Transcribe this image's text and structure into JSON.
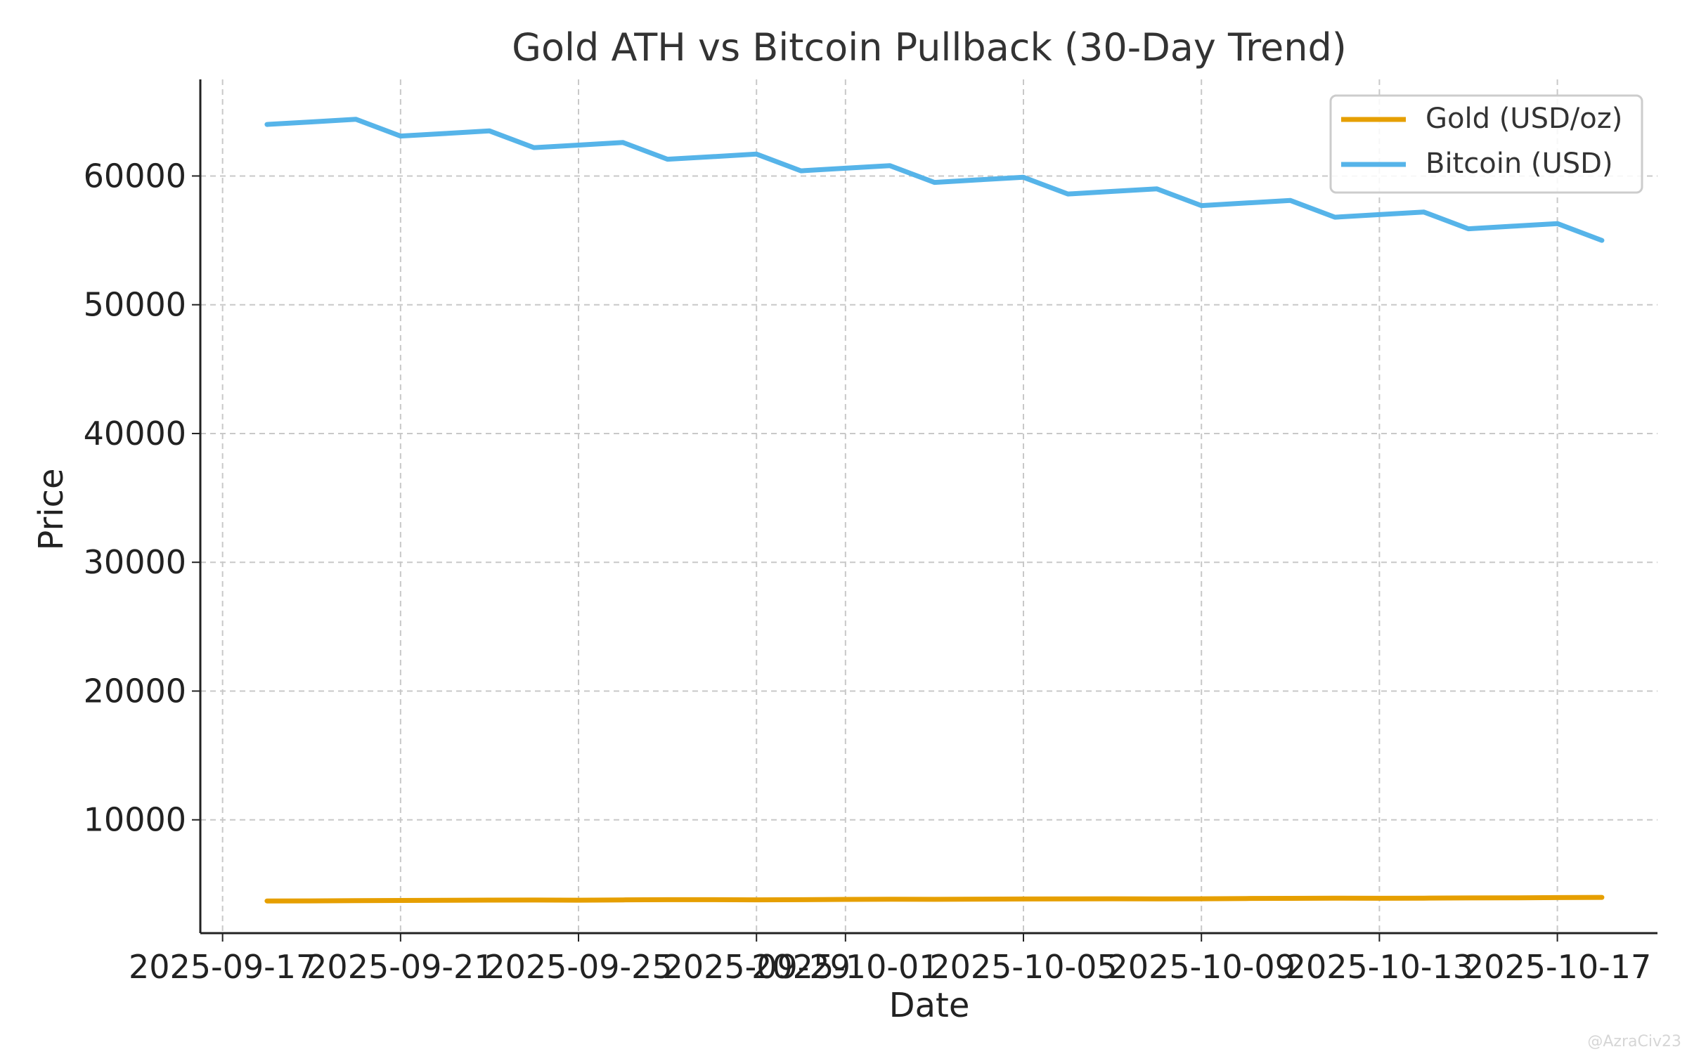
{
  "chart_data": {
    "type": "line",
    "title": "Gold ATH vs Bitcoin Pullback (30-Day Trend)",
    "xlabel": "Date",
    "ylabel": "Price",
    "ylim": [
      1200,
      67500
    ],
    "xlim": [
      "2025-09-16T12",
      "2025-10-19T06"
    ],
    "grid": true,
    "legend_position": "top-right",
    "y_ticks": [
      10000,
      20000,
      30000,
      40000,
      50000,
      60000
    ],
    "x_ticks": [
      "2025-09-17",
      "2025-09-21",
      "2025-09-25",
      "2025-09-29",
      "2025-10-01",
      "2025-10-05",
      "2025-10-09",
      "2025-10-13",
      "2025-10-17"
    ],
    "x": [
      "2025-09-18",
      "2025-09-19",
      "2025-09-20",
      "2025-09-21",
      "2025-09-22",
      "2025-09-23",
      "2025-09-24",
      "2025-09-25",
      "2025-09-26",
      "2025-09-27",
      "2025-09-28",
      "2025-09-29",
      "2025-09-30",
      "2025-10-01",
      "2025-10-02",
      "2025-10-03",
      "2025-10-04",
      "2025-10-05",
      "2025-10-06",
      "2025-10-07",
      "2025-10-08",
      "2025-10-09",
      "2025-10-10",
      "2025-10-11",
      "2025-10-12",
      "2025-10-13",
      "2025-10-14",
      "2025-10-15",
      "2025-10-16",
      "2025-10-17",
      "2025-10-18"
    ],
    "series": [
      {
        "name": "Gold (USD/oz)",
        "color": "#e69f00",
        "values": [
          3700,
          3705,
          3720,
          3735,
          3750,
          3765,
          3770,
          3760,
          3780,
          3795,
          3800,
          3785,
          3800,
          3820,
          3830,
          3825,
          3840,
          3850,
          3865,
          3870,
          3855,
          3870,
          3890,
          3900,
          3915,
          3905,
          3920,
          3935,
          3940,
          3960,
          3975
        ]
      },
      {
        "name": "Bitcoin (USD)",
        "color": "#56b4e9",
        "values": [
          64000,
          64200,
          64400,
          63100,
          63300,
          63500,
          62200,
          62400,
          62600,
          61300,
          61500,
          61700,
          60400,
          60600,
          60800,
          59500,
          59700,
          59900,
          58600,
          58800,
          59000,
          57700,
          57900,
          58100,
          56800,
          57000,
          57200,
          55900,
          56100,
          56300,
          55000
        ]
      }
    ]
  },
  "watermark": "@AzraCiv23"
}
